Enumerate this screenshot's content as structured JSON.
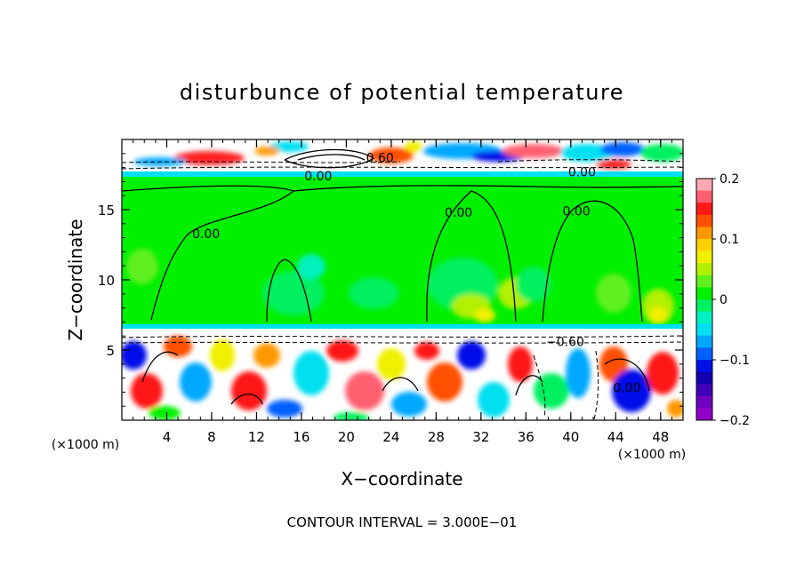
{
  "chart_data": {
    "type": "heatmap",
    "title": "disturbunce of potential temperature",
    "xlabel": "X−coordinate",
    "ylabel": "Z−coordinate",
    "x_unit": "(×1000 m)",
    "x_unit_right": "(×1000 m)",
    "xlim": [
      0,
      50
    ],
    "ylim": [
      0,
      20
    ],
    "x_ticks": [
      4,
      8,
      12,
      16,
      20,
      24,
      28,
      32,
      36,
      40,
      44,
      48
    ],
    "y_ticks": [
      5,
      10,
      15
    ],
    "x_minor_step": 1,
    "y_minor_step": 1,
    "colorbar": {
      "range": [
        -0.2,
        0.2
      ],
      "ticks": [
        "0.2",
        "0.1",
        "0",
        "−0.1",
        "−0.2"
      ],
      "tick_values": [
        0.2,
        0.1,
        0,
        -0.1,
        -0.2
      ],
      "colors": [
        "#ffa8b0",
        "#ff6070",
        "#ff1818",
        "#ff5000",
        "#ff9800",
        "#ffd000",
        "#f0f000",
        "#b0f000",
        "#60f020",
        "#00f000",
        "#00f060",
        "#00f0c0",
        "#00e0f0",
        "#00a8ff",
        "#0060ff",
        "#0010e8",
        "#1000b0",
        "#4000b8",
        "#7000c0",
        "#9000c8"
      ]
    },
    "contour_labels": [
      {
        "text": "0.00",
        "x": 17.5,
        "z": 17.4
      },
      {
        "text": "0.60",
        "x": 23.0,
        "z": 18.7
      },
      {
        "text": "0.00",
        "x": 41.0,
        "z": 17.7
      },
      {
        "text": "0.00",
        "x": 7.5,
        "z": 13.3
      },
      {
        "text": "0.00",
        "x": 30.0,
        "z": 14.8
      },
      {
        "text": "0.00",
        "x": 40.5,
        "z": 14.9
      },
      {
        "text": "−0.60",
        "x": 39.5,
        "z": 5.6
      },
      {
        "text": "0.00",
        "x": 45.0,
        "z": 2.3
      }
    ],
    "footer": "CONTOUR INTERVAL = 3.000E−01"
  }
}
